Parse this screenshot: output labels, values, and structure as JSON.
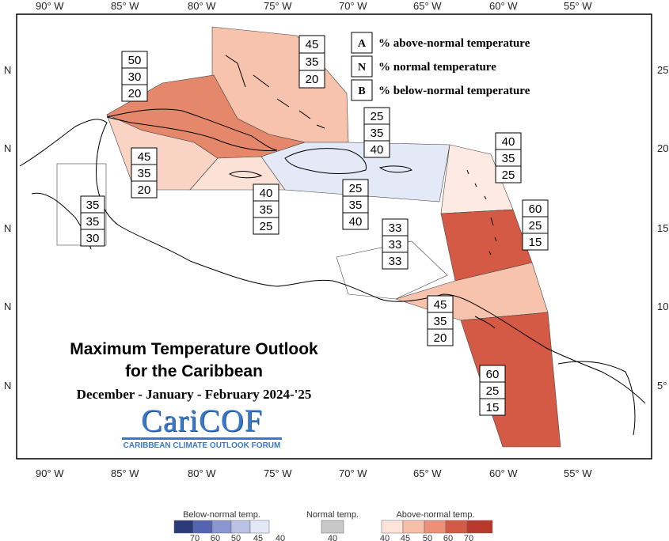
{
  "map": {
    "title_line1": "Maximum Temperature Outlook",
    "title_line2": "for the Caribbean",
    "subtitle": "December - January - February 2024-'25",
    "logo": {
      "name": "CariCOF",
      "tagline": "CARIBBEAN CLIMATE OUTLOOK FORUM"
    },
    "longitude_labels": [
      "90° W",
      "85° W",
      "80° W",
      "75° W",
      "70° W",
      "65° W",
      "60° W",
      "55° W"
    ],
    "latitude_labels_left": [
      "N",
      "N",
      "N",
      "N",
      "N"
    ],
    "latitude_labels_right": [
      "25°",
      "20°",
      "15°",
      "10°",
      "5°"
    ]
  },
  "key": {
    "rows": [
      {
        "letter": "A",
        "text": "% above-normal temperature"
      },
      {
        "letter": "N",
        "text": "% normal temperature"
      },
      {
        "letter": "B",
        "text": "% below-normal temperature"
      }
    ]
  },
  "regions": [
    {
      "id": "bahamas",
      "A": "45",
      "N": "35",
      "B": "20",
      "fill": "#f7c3ad"
    },
    {
      "id": "cuba",
      "A": "50",
      "N": "30",
      "B": "20",
      "fill": "#e4876a"
    },
    {
      "id": "cayman-west",
      "A": "45",
      "N": "35",
      "B": "20",
      "fill": "#f9d4c4"
    },
    {
      "id": "belize",
      "A": "35",
      "N": "35",
      "B": "30",
      "fill": "#ffffff"
    },
    {
      "id": "jamaica",
      "A": "40",
      "N": "35",
      "B": "25",
      "fill": "#fce1d6"
    },
    {
      "id": "hispaniola-pr-north",
      "A": "25",
      "N": "35",
      "B": "40",
      "fill": "#e3e9f6"
    },
    {
      "id": "hispaniola-pr-south",
      "A": "25",
      "N": "35",
      "B": "40",
      "fill": "#e3e9f6"
    },
    {
      "id": "leeward-islands",
      "A": "40",
      "N": "35",
      "B": "25",
      "fill": "#fdeae2"
    },
    {
      "id": "windward-islands",
      "A": "60",
      "N": "25",
      "B": "15",
      "fill": "#d45a45"
    },
    {
      "id": "abc-islands",
      "A": "33",
      "N": "33",
      "B": "33",
      "fill": "#ffffff"
    },
    {
      "id": "trinidad",
      "A": "45",
      "N": "35",
      "B": "20",
      "fill": "#f7c3ad"
    },
    {
      "id": "guianas",
      "A": "60",
      "N": "25",
      "B": "15",
      "fill": "#d45a45"
    }
  ],
  "color_scale": {
    "below": {
      "title": "Below-normal temp.",
      "ticks": [
        "70",
        "60",
        "50",
        "45",
        "40"
      ],
      "colors": [
        "#2b3a78",
        "#5365b0",
        "#8a96cf",
        "#b9c1e4",
        "#e4e8f6"
      ]
    },
    "normal": {
      "title": "Normal temp.",
      "ticks": [
        "40"
      ],
      "colors": [
        "#c8c8c8"
      ]
    },
    "above": {
      "title": "Above-normal temp.",
      "ticks": [
        "40",
        "45",
        "50",
        "60",
        "70"
      ],
      "colors": [
        "#fde4d9",
        "#f7bfa8",
        "#ec907a",
        "#d45a45",
        "#b8382c"
      ]
    }
  }
}
